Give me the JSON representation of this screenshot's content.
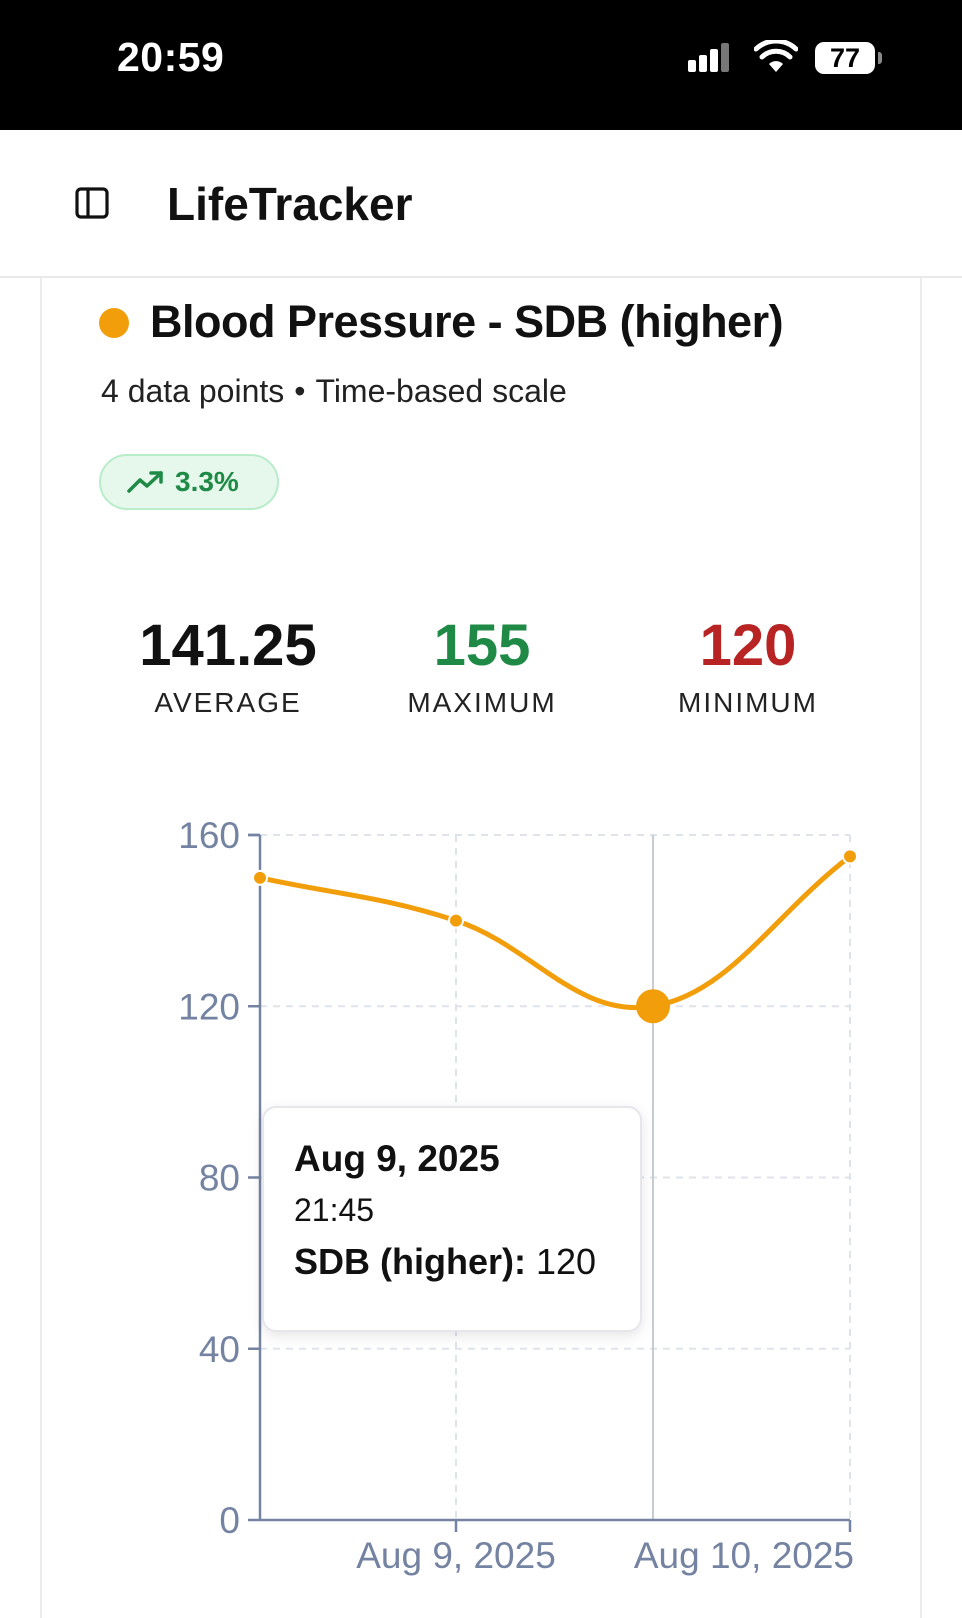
{
  "status_bar": {
    "time": "20:59",
    "battery": "77",
    "icons": [
      "cellular-signal-icon",
      "wifi-icon",
      "battery-icon"
    ]
  },
  "header": {
    "app_title": "LifeTracker",
    "icon": "sidebar-toggle-icon"
  },
  "card": {
    "title": "Blood Pressure - SDB (higher)",
    "series_color": "#f29e0b",
    "data_points_text": "4 data points",
    "separator": "•",
    "scale_text": "Time-based scale",
    "trend": {
      "value": "3.3%",
      "icon": "trending-up-icon",
      "color": "#1f8a46"
    },
    "stats": {
      "average": {
        "value": "141.25",
        "label": "AVERAGE"
      },
      "maximum": {
        "value": "155",
        "label": "MAXIMUM",
        "color": "#1f8a46"
      },
      "minimum": {
        "value": "120",
        "label": "MINIMUM",
        "color": "#b82323"
      }
    }
  },
  "chart_data": {
    "type": "line",
    "title": "",
    "xlabel": "",
    "ylabel": "",
    "ylim": [
      0,
      160
    ],
    "y_ticks": [
      "0",
      "40",
      "80",
      "120",
      "160"
    ],
    "x_ticks": [
      "Aug 9, 2025",
      "Aug 10, 2025"
    ],
    "grid": true,
    "series": [
      {
        "color": "#f29e0b",
        "points": [
          {
            "x": "Aug 9, 2025 (early)",
            "y": 150
          },
          {
            "x": "Aug 9, 2025",
            "y": 140
          },
          {
            "x": "Aug 9, 2025 21:45",
            "y": 120
          },
          {
            "x": "Aug 10, 2025",
            "y": 155
          }
        ],
        "active_index": 2
      }
    ]
  },
  "tooltip": {
    "date": "Aug 9, 2025",
    "time": "21:45",
    "series_label": "SDB (higher):",
    "value": "120"
  }
}
